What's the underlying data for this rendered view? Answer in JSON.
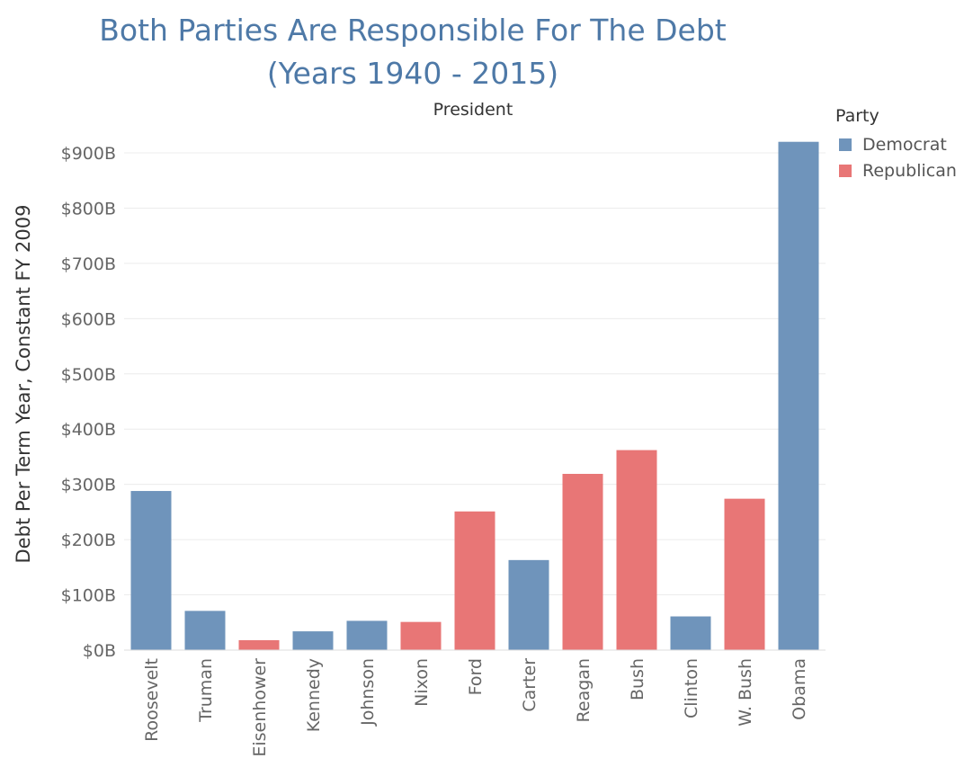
{
  "title_line1": "Both Parties Are Responsible For The Debt",
  "title_line2": "(Years 1940 - 2015)",
  "legend": {
    "title": "Party",
    "items": [
      {
        "label": "Democrat",
        "color": "#6f94bb"
      },
      {
        "label": "Republican",
        "color": "#e87676"
      }
    ]
  },
  "chart_data": {
    "type": "bar",
    "title": "Both Parties Are Responsible For The Debt (Years 1940 - 2015)",
    "xlabel": "President",
    "ylabel": "Debt Per Term Year, Constant FY 2009",
    "ylim": [
      0,
      900
    ],
    "yticks": [
      0,
      100,
      200,
      300,
      400,
      500,
      600,
      700,
      800,
      900
    ],
    "ytick_labels": [
      "$0B",
      "$100B",
      "$200B",
      "$300B",
      "$400B",
      "$500B",
      "$600B",
      "$700B",
      "$800B",
      "$900B"
    ],
    "grid": true,
    "legend_position": "top-right",
    "categories": [
      "Roosevelt",
      "Truman",
      "Eisenhower",
      "Kennedy",
      "Johnson",
      "Nixon",
      "Ford",
      "Carter",
      "Reagan",
      "Bush",
      "Clinton",
      "W. Bush",
      "Obama"
    ],
    "values": [
      288,
      71,
      18,
      34,
      53,
      51,
      251,
      163,
      319,
      362,
      61,
      274,
      920
    ],
    "party": [
      "Democrat",
      "Democrat",
      "Republican",
      "Democrat",
      "Democrat",
      "Republican",
      "Republican",
      "Democrat",
      "Republican",
      "Republican",
      "Democrat",
      "Republican",
      "Democrat"
    ],
    "colors": {
      "Democrat": "#6f94bb",
      "Republican": "#e87676"
    }
  }
}
